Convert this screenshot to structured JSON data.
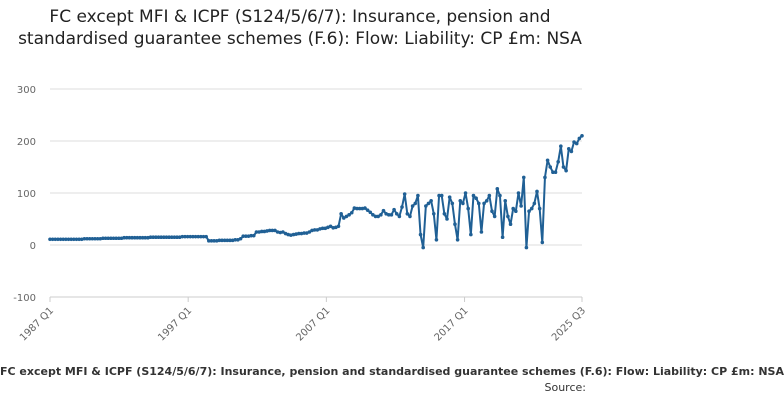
{
  "chart_data": {
    "type": "line",
    "title": "FC except MFI & ICPF (S124/5/6/7): Insurance, pension and standardised guarantee schemes (F.6): Flow: Liability: CP £m: NSA",
    "xlabel": "",
    "ylabel": "",
    "ylim": [
      -100,
      300
    ],
    "yticks": [
      -100,
      0,
      100,
      200,
      300
    ],
    "xticks": [
      "1987 Q1",
      "1997 Q1",
      "2007 Q1",
      "2017 Q1",
      "2025 Q3"
    ],
    "grid": true,
    "series_color": "#206095",
    "legend_text": "FC except MFI & ICPF (S124/5/6/7): Insurance, pension and standardised guarantee schemes (F.6): Flow: Liability: CP £m: NSA",
    "source_text": "Source:",
    "x_start": "1987 Q1",
    "x_end": "2025 Q3",
    "series": [
      {
        "values": [
          11,
          11,
          11,
          11,
          11,
          11,
          11,
          11,
          11,
          11,
          11,
          11,
          11,
          12,
          12,
          12,
          12,
          12,
          12,
          12,
          13,
          13,
          13,
          13,
          13,
          13,
          13,
          13,
          14,
          14,
          14,
          14,
          14,
          14,
          14,
          14,
          14,
          14,
          15,
          15,
          15,
          15,
          15,
          15,
          15,
          15,
          15,
          15,
          15,
          15,
          16,
          16,
          16,
          16,
          16,
          16,
          16,
          16,
          16,
          16,
          8,
          8,
          8,
          8,
          9,
          9,
          9,
          9,
          9,
          9,
          10,
          10,
          12,
          17,
          17,
          17,
          18,
          18,
          25,
          25,
          26,
          26,
          27,
          28,
          28,
          28,
          25,
          24,
          25,
          22,
          20,
          19,
          20,
          21,
          22,
          22,
          23,
          23,
          25,
          28,
          29,
          29,
          31,
          32,
          32,
          34,
          36,
          33,
          34,
          36,
          60,
          52,
          55,
          58,
          62,
          71,
          70,
          70,
          70,
          71,
          67,
          63,
          58,
          55,
          55,
          58,
          66,
          60,
          58,
          58,
          68,
          60,
          55,
          73,
          98,
          60,
          55,
          75,
          80,
          95,
          20,
          -5,
          75,
          80,
          85,
          60,
          10,
          95,
          95,
          60,
          50,
          92,
          80,
          40,
          10,
          85,
          80,
          100,
          70,
          20,
          95,
          90,
          80,
          25,
          80,
          85,
          95,
          65,
          55,
          108,
          95,
          15,
          85,
          55,
          40,
          70,
          65,
          100,
          75,
          130,
          -5,
          65,
          70,
          80,
          103,
          70,
          5,
          130,
          163,
          150,
          140,
          140,
          160,
          190,
          150,
          143,
          185,
          180,
          198,
          195,
          205,
          210
        ]
      }
    ]
  }
}
